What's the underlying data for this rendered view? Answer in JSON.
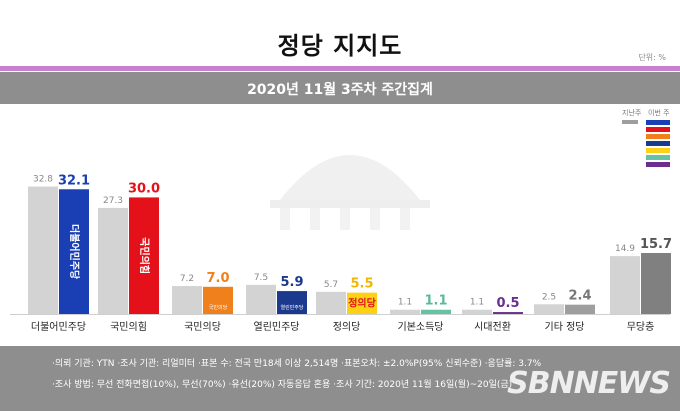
{
  "title": "정당 지지도",
  "unit": "단위: %",
  "subtitle": "2020년 11월 3주차 주간집계",
  "legend": {
    "prev_label": "지난주",
    "curr_label": "이번 주"
  },
  "chart_data": {
    "type": "bar",
    "categories": [
      "더불어민주당",
      "국민의힘",
      "국민의당",
      "열린민주당",
      "정의당",
      "기본소득당",
      "시대전환",
      "기타 정당",
      "무당층"
    ],
    "series": [
      {
        "name": "지난주",
        "values": [
          32.8,
          27.3,
          7.2,
          7.5,
          5.7,
          1.1,
          1.1,
          2.5,
          14.9
        ]
      },
      {
        "name": "이번 주",
        "values": [
          32.1,
          30.0,
          7.0,
          5.9,
          5.5,
          1.1,
          0.5,
          2.4,
          15.7
        ]
      }
    ],
    "ylim": [
      0,
      35
    ],
    "colors": {
      "prev": "#d3d3d3",
      "current": [
        "#1a3fb5",
        "#e4111b",
        "#f0801c",
        "#1b3a8e",
        "#fcd116",
        "#66c2a5",
        "#6a2f8f",
        "#9e9e9e",
        "#808080"
      ],
      "value_text": [
        "#1a3fb5",
        "#e4111b",
        "#f0801c",
        "#1b3a8e",
        "#f2b705",
        "#5bb89a",
        "#6a2f8f",
        "#777777",
        "#555555"
      ]
    },
    "legend_colors": [
      "#9e9e9e",
      "#1a3fb5",
      "#e4111b",
      "#f0801c",
      "#1b3a8e",
      "#fcd116",
      "#66c2a5",
      "#6a2f8f"
    ],
    "bar_labels": [
      "더불어민주당",
      "국민의힘",
      "",
      "",
      "정의당",
      "",
      "",
      "",
      ""
    ],
    "logo_labels": [
      "",
      "",
      "국민의당",
      "열린민주당",
      "",
      "",
      "",
      "",
      ""
    ]
  },
  "footer": {
    "line1": "·의뢰 기관: YTN ·조사 기관: 리얼미터 ·표본 수: 전국 만18세 이상 2,514명 ·표본오차: ±2.0%P(95% 신뢰수준) ·응답률: 3.7%",
    "line2": "·조사 방법: 무선 전화면접(10%), 무선(70%) ·유선(20%) 자동응답 혼용 ·조사 기간: 2020년 11월 16일(월)~20일(금)",
    "brand": "SBNNEWS"
  }
}
